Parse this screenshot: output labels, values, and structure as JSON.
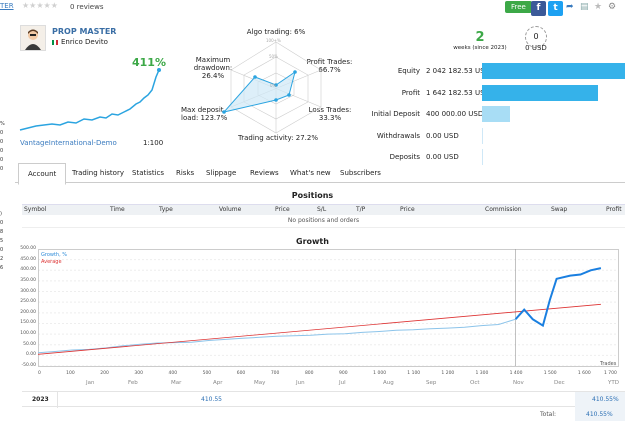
{
  "topbar": {
    "name_fragment": "TER",
    "reviews": "0 reviews",
    "free_button": "Free"
  },
  "profile": {
    "title": "PROP MASTER",
    "author": "Enrico Devito",
    "growth_pct": "411%",
    "account_name": "VantageInternational-Demo",
    "leverage": "1:100"
  },
  "left_edge": [
    "%",
    "0",
    "0",
    "0",
    "0",
    "0",
    ")",
    "0",
    "8",
    "5",
    "0",
    "2",
    "6"
  ],
  "radar": {
    "algo": "Algo trading: 6%",
    "max_dd": "Maximum drawdown:",
    "max_dd_val": "26.4%",
    "profit_trades": "Profit Trades:",
    "profit_trades_val": "66.7%",
    "max_deposit": "Max deposit load: 123.7%",
    "loss_trades": "Loss Trades:",
    "loss_trades_val": "33.3%",
    "trading_activity": "Trading activity: 27.2%",
    "ring_100": "100+%",
    "ring_50": "50%",
    "ring_0": "0%"
  },
  "weeks": {
    "value": "2",
    "label": "weeks (since 2023)",
    "subscribers": "0 USD"
  },
  "bars": [
    {
      "label": "Equity",
      "value": "2 042 182.53 USD",
      "fraction": 1.0,
      "color": "#35b2ea"
    },
    {
      "label": "Profit",
      "value": "1 642 182.53 USD",
      "fraction": 0.8,
      "color": "#35b2ea"
    },
    {
      "label": "Initial Deposit",
      "value": "400 000.00 USD",
      "fraction": 0.196,
      "color": "#a8ddf5"
    },
    {
      "label": "Withdrawals",
      "value": "0.00 USD",
      "fraction": 0,
      "color": "#35b2ea"
    },
    {
      "label": "Deposits",
      "value": "0.00 USD",
      "fraction": 0,
      "color": "#35b2ea"
    }
  ],
  "tabs": [
    "Account",
    "Trading history",
    "Statistics",
    "Risks",
    "Slippage",
    "Reviews",
    "What's new",
    "Subscribers"
  ],
  "positions": {
    "title": "Positions",
    "columns": [
      "Symbol",
      "Time",
      "Type",
      "Volume",
      "Price",
      "S/L",
      "T/P",
      "Price",
      "Commission",
      "Swap",
      "Profit"
    ],
    "empty": "No positions and orders"
  },
  "growth": {
    "title": "Growth",
    "legend_growth": "Growth, %",
    "legend_average": "Average",
    "trades_label": "Trades",
    "y_ticks": [
      "500.00",
      "450.00",
      "400.00",
      "350.00",
      "300.00",
      "250.00",
      "200.00",
      "150.00",
      "100.00",
      "50.00",
      "0.00",
      "-50.00"
    ],
    "x_ticks": [
      "0",
      "100",
      "200",
      "300",
      "400",
      "500",
      "600",
      "700",
      "800",
      "900",
      "1 000",
      "1 100",
      "1 200",
      "1 300",
      "1 400",
      "1 500",
      "1 600",
      "1 700"
    ],
    "months": [
      "Jan",
      "Feb",
      "Mar",
      "Apr",
      "May",
      "Jun",
      "Jul",
      "Aug",
      "Sep",
      "Oct",
      "Nov",
      "Dec",
      "YTD"
    ],
    "year": "2023",
    "apr_value": "410.55",
    "ytd_value": "410.55%",
    "total_label": "Total:",
    "total_value": "410.55%"
  },
  "chart_data": {
    "type": "line",
    "title": "Growth",
    "xlabel": "Trades",
    "ylabel": "",
    "xlim": [
      0,
      1700
    ],
    "ylim": [
      -50,
      500
    ],
    "series": [
      {
        "name": "Growth, %",
        "x": [
          0,
          50,
          100,
          150,
          200,
          250,
          300,
          350,
          400,
          450,
          500,
          550,
          600,
          650,
          700,
          750,
          800,
          850,
          900,
          950,
          1000,
          1050,
          1100,
          1150,
          1200,
          1250,
          1300,
          1350,
          1400,
          1425,
          1450,
          1480,
          1500,
          1520,
          1560,
          1590,
          1620,
          1650
        ],
        "y": [
          12,
          18,
          25,
          28,
          35,
          45,
          52,
          58,
          60,
          62,
          70,
          75,
          80,
          85,
          90,
          92,
          95,
          100,
          102,
          108,
          112,
          118,
          120,
          125,
          128,
          132,
          140,
          145,
          170,
          215,
          170,
          140,
          260,
          360,
          375,
          380,
          400,
          410
        ]
      },
      {
        "name": "Average",
        "x": [
          0,
          1650
        ],
        "y": [
          5,
          240
        ]
      }
    ]
  }
}
